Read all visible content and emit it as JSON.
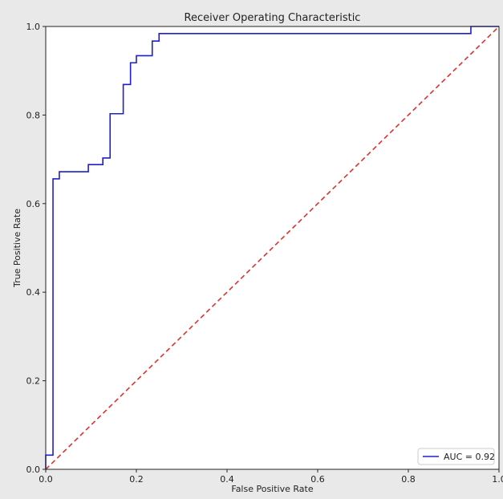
{
  "chart_data": {
    "type": "line",
    "title": "Receiver Operating Characteristic",
    "xlabel": "False Positive Rate",
    "ylabel": "True Positive Rate",
    "xlim": [
      0,
      1
    ],
    "ylim": [
      0,
      1
    ],
    "xticks": [
      "0.0",
      "0.2",
      "0.4",
      "0.6",
      "0.8",
      "1.0"
    ],
    "yticks": [
      "0.0",
      "0.2",
      "0.4",
      "0.6",
      "0.8",
      "1.0"
    ],
    "grid": false,
    "legend": {
      "position": "lower-right",
      "entries": [
        "AUC = 0.92"
      ]
    },
    "series": [
      {
        "name": "AUC = 0.92",
        "color": "#1f1fcc",
        "style": "solid",
        "x": [
          0,
          0,
          0.016,
          0.016,
          0.03,
          0.03,
          0.094,
          0.094,
          0.126,
          0.126,
          0.142,
          0.142,
          0.171,
          0.171,
          0.187,
          0.187,
          0.2,
          0.2,
          0.235,
          0.235,
          0.25,
          0.25,
          0.938,
          0.938,
          1.0
        ],
        "y": [
          0,
          0.032,
          0.032,
          0.656,
          0.656,
          0.672,
          0.672,
          0.688,
          0.688,
          0.703,
          0.703,
          0.803,
          0.803,
          0.869,
          0.869,
          0.918,
          0.918,
          0.934,
          0.934,
          0.967,
          0.967,
          0.984,
          0.984,
          1.0,
          1.0
        ]
      },
      {
        "color": "#e03030",
        "style": "dashed",
        "x": [
          0,
          1
        ],
        "y": [
          0,
          1
        ]
      }
    ]
  }
}
